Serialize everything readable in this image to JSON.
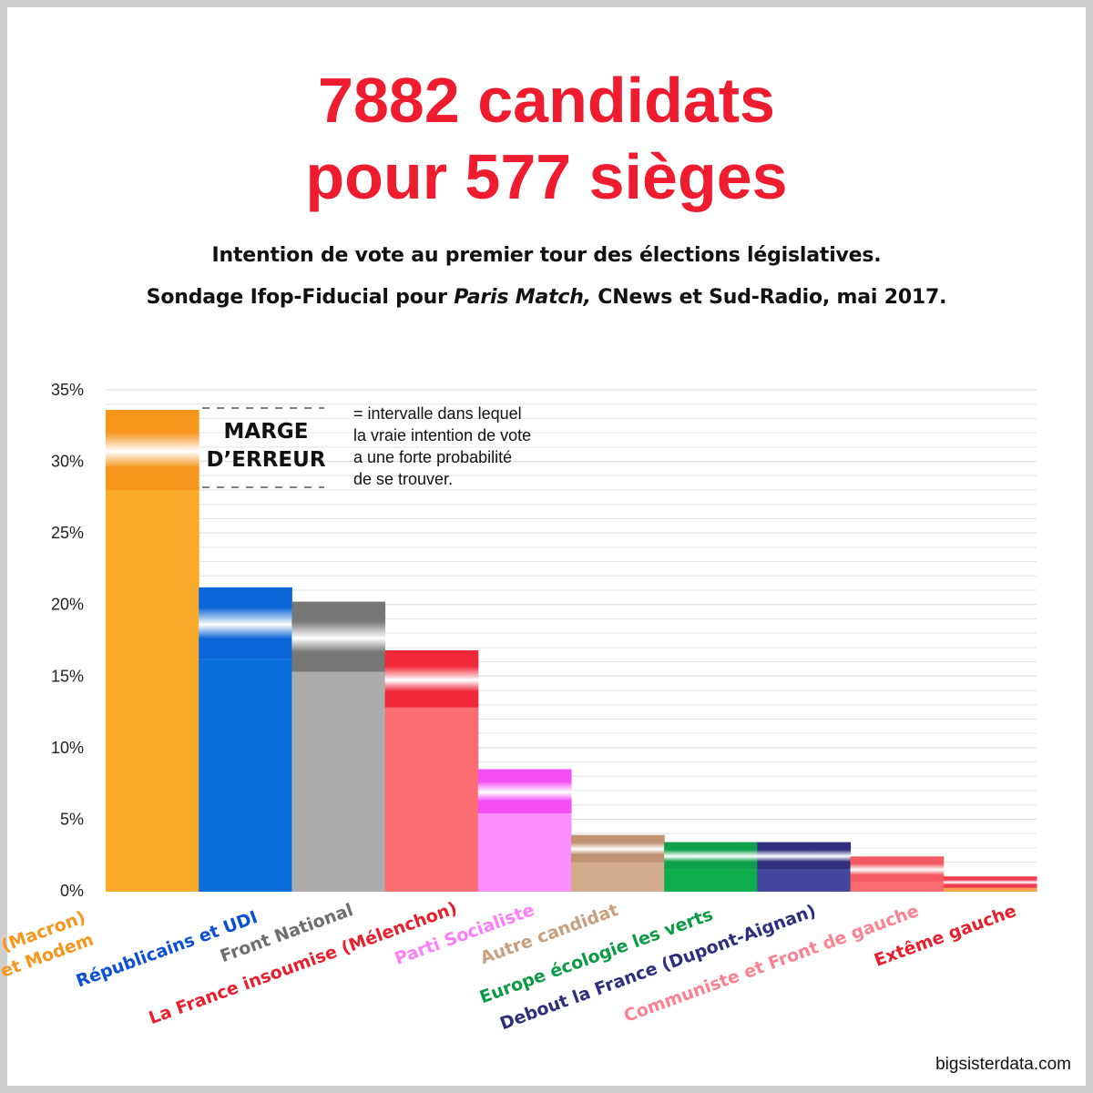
{
  "title": {
    "line1": "7882 candidats",
    "line2": "pour 577 sièges"
  },
  "subtitle": {
    "line1": "Intention de vote au premier tour des élections législatives.",
    "line2_prefix": "Sondage Ifop-Fiducial pour ",
    "line2_italic": "Paris Match,",
    "line2_suffix": " CNews et Sud-Radio, mai 2017."
  },
  "credit": "bigsisterdata.com",
  "colors": {
    "title": "#ee1c2e",
    "grid": "#e3e3e3"
  },
  "chart_data": {
    "type": "bar",
    "ylim": [
      0,
      35
    ],
    "yticks": [
      {
        "value": 35,
        "label": "35%"
      },
      {
        "value": 30,
        "label": "30%"
      },
      {
        "value": 25,
        "label": "25%"
      },
      {
        "value": 20,
        "label": "20%"
      },
      {
        "value": 15,
        "label": "15%"
      },
      {
        "value": 10,
        "label": "10%"
      },
      {
        "value": 5,
        "label": "5%"
      },
      {
        "value": 0,
        "label": "0%"
      }
    ],
    "grid": true,
    "categories": [
      {
        "label": "REM (Macron)\net Modem",
        "low": 28.0,
        "high": 33.6,
        "base": "#f9aa2a",
        "band": "#f7961d",
        "label_color": "#f7961d"
      },
      {
        "label": "Républicains et UDI",
        "low": 16.2,
        "high": 21.2,
        "base": "#0a6fdc",
        "band": "#0a66d8",
        "label_color": "#0b4fd6"
      },
      {
        "label": "Front National",
        "low": 15.3,
        "high": 20.2,
        "base": "#acacac",
        "band": "#777777",
        "label_color": "#6e6e6e"
      },
      {
        "label": "La France insoumise (Mélenchon)",
        "low": 12.8,
        "high": 16.8,
        "base": "#fc6d71",
        "band": "#f0283a",
        "label_color": "#e8202e"
      },
      {
        "label": "Parti Socialiste",
        "low": 5.4,
        "high": 8.5,
        "base": "#fd8ffd",
        "band": "#f34ef3",
        "label_color": "#ff7dfb"
      },
      {
        "label": "Autre candidat",
        "low": 2.0,
        "high": 3.9,
        "base": "#d3ac8d",
        "band": "#c09372",
        "label_color": "#c9a07f"
      },
      {
        "label": "Europe écologie les verts",
        "low": 1.5,
        "high": 3.4,
        "base": "#0fac4b",
        "band": "#0ea04a",
        "label_color": "#0c9a45"
      },
      {
        "label": "Debout la France (Dupont-Aignan)",
        "low": 1.5,
        "high": 3.4,
        "base": "#45479f",
        "band": "#31307e",
        "label_color": "#2e2e7c"
      },
      {
        "label": "Communiste et Front de gauche",
        "low": 0.6,
        "high": 2.4,
        "base": "#f96b72",
        "band": "#f45a63",
        "label_color": "#fb8290"
      },
      {
        "label": "Extême gauche",
        "low": 0.2,
        "high": 1.0,
        "base": "#f9a44c",
        "band": "#f23a4c",
        "label_color": "#e8202e"
      }
    ],
    "annotation": {
      "marge_line1": "MARGE",
      "marge_line2": "D’ERREUR",
      "note": [
        "= intervalle dans lequel",
        "la vraie intention de vote",
        "a une forte probabilité",
        "de se trouver."
      ]
    }
  }
}
